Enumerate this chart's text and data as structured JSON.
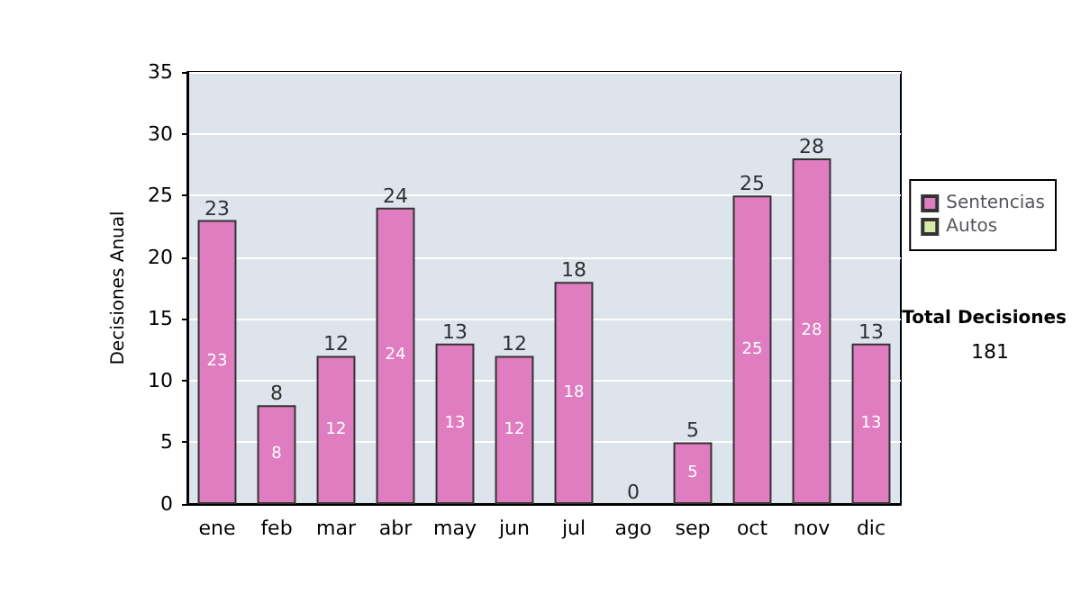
{
  "chart_data": {
    "type": "bar",
    "ylabel": "Decisiones Anual",
    "categories": [
      "ene",
      "feb",
      "mar",
      "abr",
      "may",
      "jun",
      "jul",
      "ago",
      "sep",
      "oct",
      "nov",
      "dic"
    ],
    "series": [
      {
        "name": "Sentencias",
        "color": "#e07cc0",
        "values": [
          23,
          8,
          12,
          24,
          13,
          12,
          18,
          0,
          5,
          25,
          28,
          13
        ],
        "value_labels": [
          "23",
          "8",
          "12",
          "24",
          "13",
          "12",
          "18",
          null,
          "5",
          "25",
          "28",
          "13"
        ]
      },
      {
        "name": "Autos",
        "color": "#d8eca8",
        "values": [
          null,
          null,
          null,
          null,
          null,
          null,
          null,
          null,
          null,
          null,
          null,
          null
        ]
      }
    ],
    "stacked": true,
    "totals": [
      "23",
      "8",
      "12",
      "24",
      "13",
      "12",
      "18",
      "0",
      "5",
      "25",
      "28",
      "13"
    ],
    "ylim": [
      0,
      35
    ],
    "yticks": [
      0,
      5,
      10,
      15,
      20,
      25,
      30,
      35
    ],
    "grid": "y",
    "legend": "right",
    "annotations": [
      "Total Decisiones",
      "181"
    ]
  }
}
